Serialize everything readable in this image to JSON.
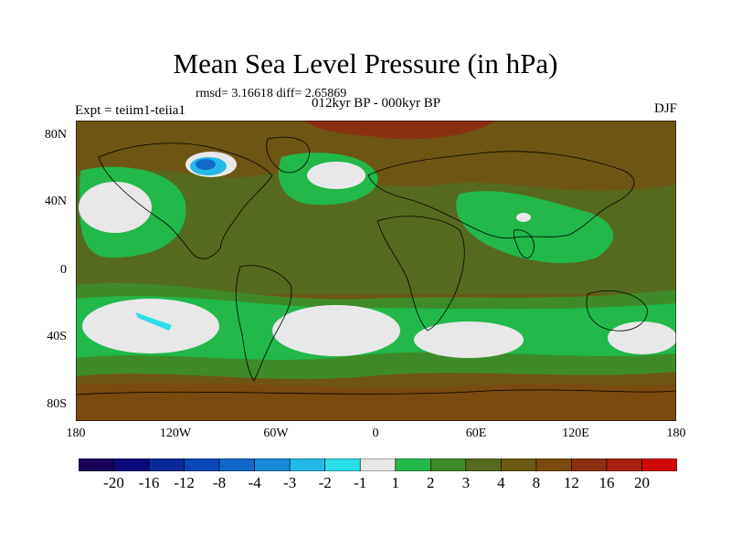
{
  "title": "Mean Sea Level Pressure (in hPa)",
  "stats": "rmsd= 3.16618 diff= 2.65869",
  "period": "012kyr BP - 000kyr BP",
  "experiment": "Expt = teiim1-teiia1",
  "season": "DJF",
  "lat_ticks": [
    "80N",
    "40N",
    "0",
    "40S",
    "80S"
  ],
  "lon_ticks": [
    "180",
    "120W",
    "60W",
    "0",
    "60E",
    "120E",
    "180"
  ],
  "colorbar": {
    "colors": [
      "#16005a",
      "#0a0a7a",
      "#0a2a9a",
      "#0a48b8",
      "#1268c8",
      "#1a8ad8",
      "#22b8e8",
      "#2ae0e8",
      "#e8e8e8",
      "#22b84a",
      "#3e8a28",
      "#556a1e",
      "#6a5a12",
      "#7a4a0e",
      "#8a3010",
      "#a82010",
      "#d00808"
    ],
    "labels": [
      "-20",
      "-16",
      "-12",
      "-8",
      "-4",
      "-3",
      "-2",
      "-1",
      "1",
      "2",
      "3",
      "4",
      "8",
      "12",
      "16",
      "20"
    ]
  },
  "colors": {
    "brown": "#6e5514",
    "olive": "#556a1e",
    "green": "#3e8a28",
    "bright_green": "#22b84a",
    "white": "#e8e8e8"
  }
}
